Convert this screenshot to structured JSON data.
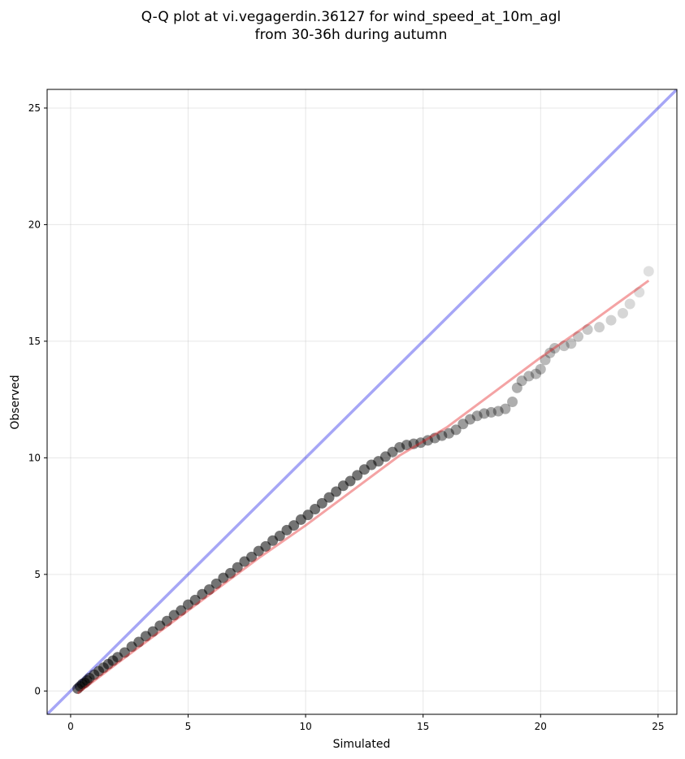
{
  "chart_data": {
    "type": "scatter",
    "title": "Q-Q plot at vi.vegagerdin.36127 for wind_speed_at_10m_agl",
    "subtitle": "from 30-36h during autumn",
    "xlabel": "Simulated",
    "ylabel": "Observed",
    "xlim": [
      -1.0,
      25.8
    ],
    "ylim": [
      -1.0,
      25.8
    ],
    "xticks": [
      "0",
      "5",
      "10",
      "15",
      "20",
      "25"
    ],
    "yticks": [
      "0",
      "5",
      "10",
      "15",
      "20",
      "25"
    ],
    "grid": true,
    "colors": {
      "points": "#000000",
      "reference_line": "#0000e6",
      "fit_line": "#e31a1c"
    },
    "reference_line": {
      "x": [
        -1.0,
        25.8
      ],
      "y": [
        -1.0,
        25.8
      ]
    },
    "fit_line": {
      "x": [
        0.3,
        2,
        4,
        6,
        8,
        10,
        12,
        14,
        16,
        18,
        20,
        22,
        24.6
      ],
      "y": [
        -0.1,
        1.2,
        2.7,
        4.2,
        5.7,
        7.1,
        8.6,
        10.1,
        11.3,
        12.8,
        14.3,
        15.7,
        17.6
      ]
    },
    "points": {
      "x": [
        0.3,
        0.4,
        0.5,
        0.6,
        0.7,
        0.8,
        1.0,
        1.2,
        1.4,
        1.6,
        1.8,
        2.0,
        2.3,
        2.6,
        2.9,
        3.2,
        3.5,
        3.8,
        4.1,
        4.4,
        4.7,
        5.0,
        5.3,
        5.6,
        5.9,
        6.2,
        6.5,
        6.8,
        7.1,
        7.4,
        7.7,
        8.0,
        8.3,
        8.6,
        8.9,
        9.2,
        9.5,
        9.8,
        10.1,
        10.4,
        10.7,
        11.0,
        11.3,
        11.6,
        11.9,
        12.2,
        12.5,
        12.8,
        13.1,
        13.4,
        13.7,
        14.0,
        14.3,
        14.6,
        14.9,
        15.2,
        15.5,
        15.8,
        16.1,
        16.4,
        16.7,
        17.0,
        17.3,
        17.6,
        17.9,
        18.2,
        18.5,
        18.8,
        19.0,
        19.2,
        19.5,
        19.8,
        20.0,
        20.2,
        20.4,
        20.6,
        21.0,
        21.3,
        21.6,
        22.0,
        22.5,
        23.0,
        23.5,
        23.8,
        24.2,
        24.6
      ],
      "y": [
        0.1,
        0.2,
        0.3,
        0.35,
        0.45,
        0.55,
        0.7,
        0.85,
        1.0,
        1.15,
        1.3,
        1.45,
        1.65,
        1.9,
        2.1,
        2.35,
        2.55,
        2.8,
        3.0,
        3.25,
        3.45,
        3.7,
        3.9,
        4.15,
        4.35,
        4.6,
        4.85,
        5.05,
        5.3,
        5.55,
        5.75,
        6.0,
        6.2,
        6.45,
        6.65,
        6.9,
        7.1,
        7.35,
        7.55,
        7.8,
        8.05,
        8.3,
        8.55,
        8.8,
        9.0,
        9.25,
        9.5,
        9.7,
        9.85,
        10.05,
        10.25,
        10.45,
        10.55,
        10.6,
        10.65,
        10.75,
        10.85,
        10.95,
        11.05,
        11.2,
        11.45,
        11.65,
        11.8,
        11.9,
        11.95,
        12.0,
        12.1,
        12.4,
        13.0,
        13.3,
        13.5,
        13.6,
        13.8,
        14.2,
        14.5,
        14.7,
        14.8,
        14.9,
        15.2,
        15.5,
        15.6,
        15.9,
        16.2,
        16.6,
        17.1,
        18.0
      ]
    }
  }
}
